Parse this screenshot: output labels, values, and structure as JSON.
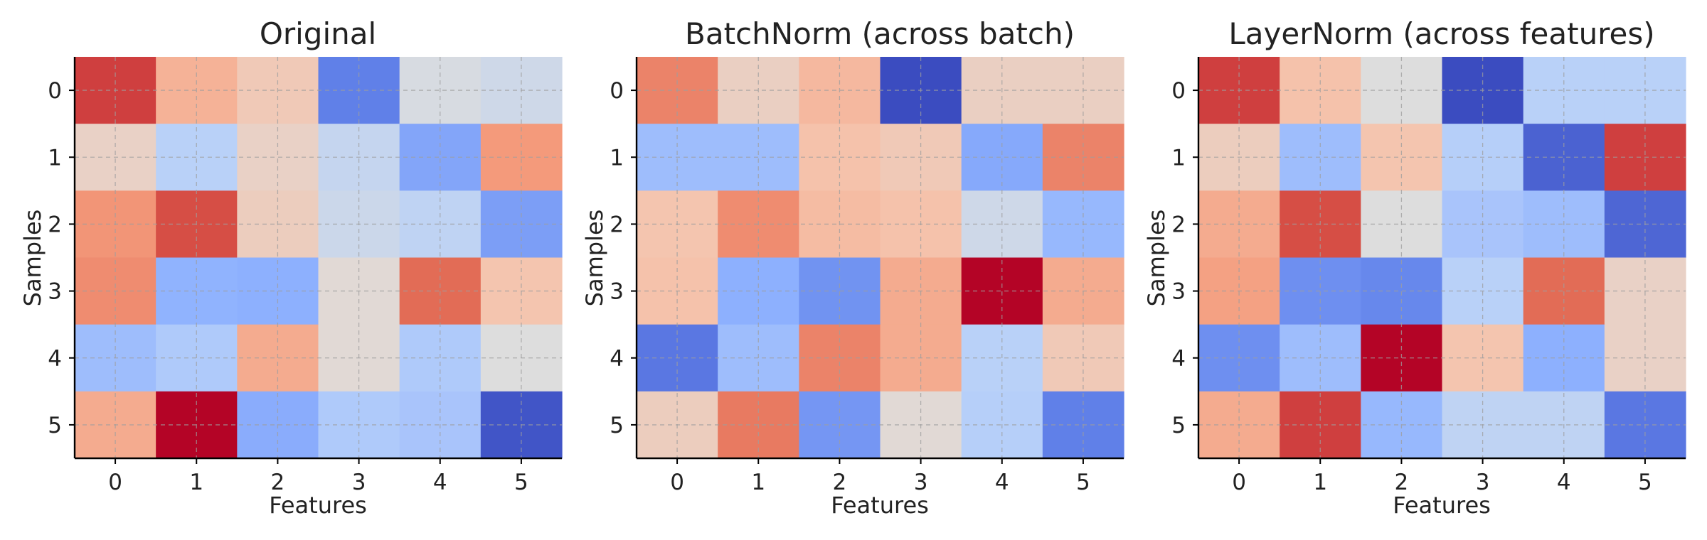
{
  "chart_data": [
    {
      "type": "heatmap",
      "title": "Original",
      "xlabel": "Features",
      "ylabel": "Samples",
      "x_ticks": [
        "0",
        "1",
        "2",
        "3",
        "4",
        "5"
      ],
      "y_ticks": [
        "0",
        "1",
        "2",
        "3",
        "4",
        "5"
      ],
      "colormap": "coolwarm",
      "color_range": [
        0,
        1
      ],
      "grid": true,
      "values": [
        [
          0.92,
          0.68,
          0.6,
          0.12,
          0.48,
          0.45
        ],
        [
          0.56,
          0.38,
          0.56,
          0.42,
          0.22,
          0.75
        ],
        [
          0.76,
          0.9,
          0.58,
          0.44,
          0.4,
          0.2
        ],
        [
          0.78,
          0.26,
          0.25,
          0.52,
          0.85,
          0.62
        ],
        [
          0.3,
          0.35,
          0.7,
          0.52,
          0.35,
          0.5
        ],
        [
          0.7,
          1.0,
          0.24,
          0.35,
          0.33,
          0.02
        ]
      ]
    },
    {
      "type": "heatmap",
      "title": "BatchNorm (across batch)",
      "xlabel": "Features",
      "ylabel": "Samples",
      "x_ticks": [
        "0",
        "1",
        "2",
        "3",
        "4",
        "5"
      ],
      "y_ticks": [
        "0",
        "1",
        "2",
        "3",
        "4",
        "5"
      ],
      "colormap": "coolwarm",
      "color_range": [
        0,
        1
      ],
      "grid": true,
      "values": [
        [
          0.8,
          0.57,
          0.66,
          0.0,
          0.57,
          0.57
        ],
        [
          0.3,
          0.3,
          0.63,
          0.6,
          0.23,
          0.8
        ],
        [
          0.62,
          0.78,
          0.65,
          0.63,
          0.45,
          0.28
        ],
        [
          0.63,
          0.25,
          0.17,
          0.7,
          1.0,
          0.7
        ],
        [
          0.1,
          0.3,
          0.8,
          0.7,
          0.38,
          0.6
        ],
        [
          0.58,
          0.82,
          0.18,
          0.52,
          0.37,
          0.12
        ]
      ]
    },
    {
      "type": "heatmap",
      "title": "LayerNorm (across features)",
      "xlabel": "Features",
      "ylabel": "Samples",
      "x_ticks": [
        "0",
        "1",
        "2",
        "3",
        "4",
        "5"
      ],
      "y_ticks": [
        "0",
        "1",
        "2",
        "3",
        "4",
        "5"
      ],
      "colormap": "coolwarm",
      "color_range": [
        0,
        1
      ],
      "grid": true,
      "values": [
        [
          0.92,
          0.63,
          0.5,
          0.0,
          0.38,
          0.38
        ],
        [
          0.58,
          0.3,
          0.62,
          0.37,
          0.05,
          0.92
        ],
        [
          0.7,
          0.9,
          0.5,
          0.33,
          0.3,
          0.06
        ],
        [
          0.73,
          0.16,
          0.14,
          0.38,
          0.85,
          0.56
        ],
        [
          0.16,
          0.3,
          1.0,
          0.62,
          0.25,
          0.56
        ],
        [
          0.7,
          0.92,
          0.28,
          0.4,
          0.4,
          0.1
        ]
      ]
    }
  ]
}
